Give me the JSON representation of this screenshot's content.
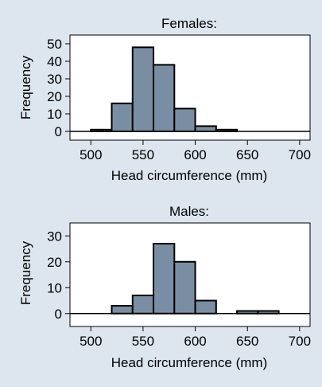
{
  "chart_data": [
    {
      "type": "bar",
      "title": "Females:",
      "xlabel": "Head circumference (mm)",
      "ylabel": "Frequency",
      "xlim": [
        480,
        710
      ],
      "ylim": [
        -5,
        55
      ],
      "x_ticks": [
        500,
        550,
        600,
        650,
        700
      ],
      "y_ticks": [
        0,
        10,
        20,
        30,
        40,
        50
      ],
      "bin_width": 20,
      "bins": [
        {
          "x": 500,
          "value": 1
        },
        {
          "x": 520,
          "value": 16
        },
        {
          "x": 540,
          "value": 48
        },
        {
          "x": 560,
          "value": 38
        },
        {
          "x": 580,
          "value": 13
        },
        {
          "x": 600,
          "value": 3
        },
        {
          "x": 620,
          "value": 1
        }
      ]
    },
    {
      "type": "bar",
      "title": "Males:",
      "xlabel": "Head circumference (mm)",
      "ylabel": "Frequency",
      "xlim": [
        480,
        710
      ],
      "ylim": [
        -5,
        35
      ],
      "x_ticks": [
        500,
        550,
        600,
        650,
        700
      ],
      "y_ticks": [
        0,
        10,
        20,
        30
      ],
      "bin_width": 20,
      "bins": [
        {
          "x": 520,
          "value": 3
        },
        {
          "x": 540,
          "value": 7
        },
        {
          "x": 560,
          "value": 27
        },
        {
          "x": 580,
          "value": 20
        },
        {
          "x": 600,
          "value": 5
        },
        {
          "x": 640,
          "value": 1
        },
        {
          "x": 660,
          "value": 1
        }
      ]
    }
  ],
  "colors": {
    "background": "#dde6ef",
    "plot_area": "#ffffff",
    "bar_fill": "#7a8ea3",
    "bar_stroke": "#000000"
  }
}
